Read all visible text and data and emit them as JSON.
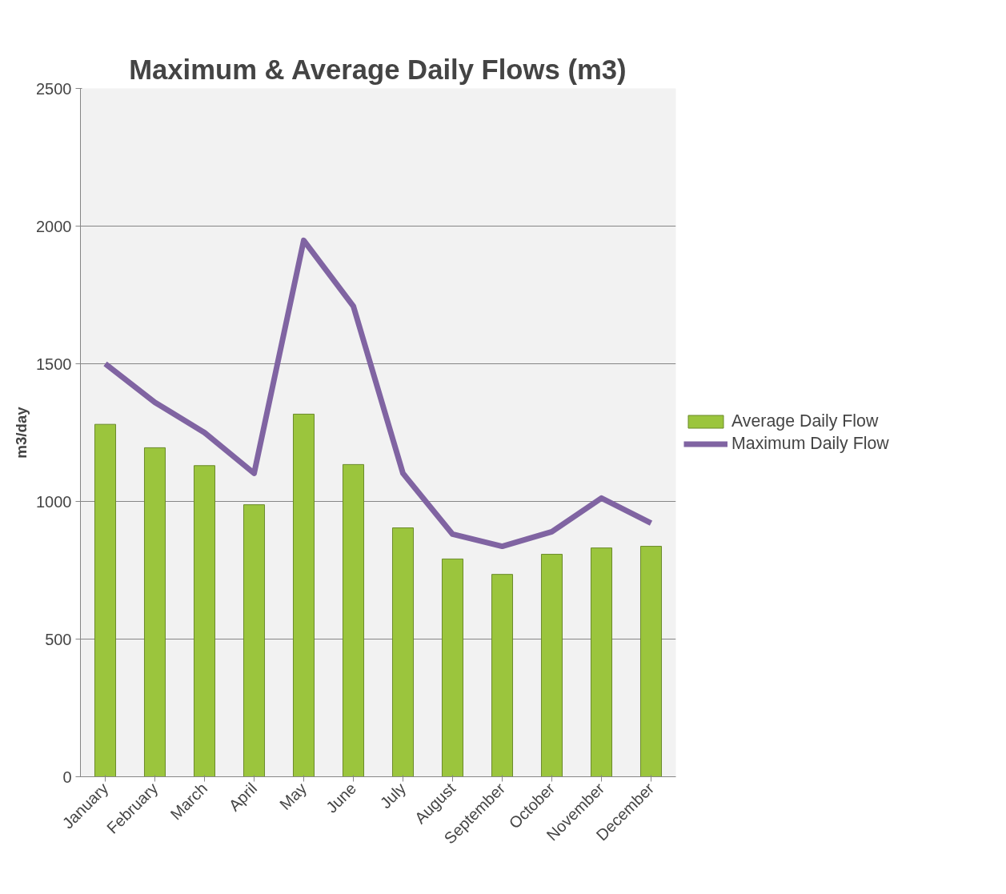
{
  "chart_data": {
    "type": "bar",
    "title": "Maximum & Average Daily Flows (m3)",
    "ylabel": "m3/day",
    "categories": [
      "January",
      "February",
      "March",
      "April",
      "May",
      "June",
      "July",
      "August",
      "September",
      "October",
      "November",
      "December"
    ],
    "series": [
      {
        "name": "Average Daily Flow",
        "color": "#9bc53d",
        "values": [
          1280,
          1195,
          1130,
          988,
          1317,
          1134,
          904,
          791,
          735,
          808,
          831,
          837
        ]
      },
      {
        "name": "Maximum Daily Flow",
        "type": "line",
        "color": "#8064a2",
        "values": [
          1500,
          1360,
          1250,
          1102,
          1948,
          1709,
          1102,
          881,
          837,
          890,
          1012,
          921
        ]
      }
    ],
    "ylim": [
      0,
      2500
    ],
    "yticks": [
      0,
      500,
      1000,
      1500,
      2000,
      2500
    ],
    "grid": "y",
    "legend": "right",
    "line_style": "solid",
    "marker": "none"
  }
}
